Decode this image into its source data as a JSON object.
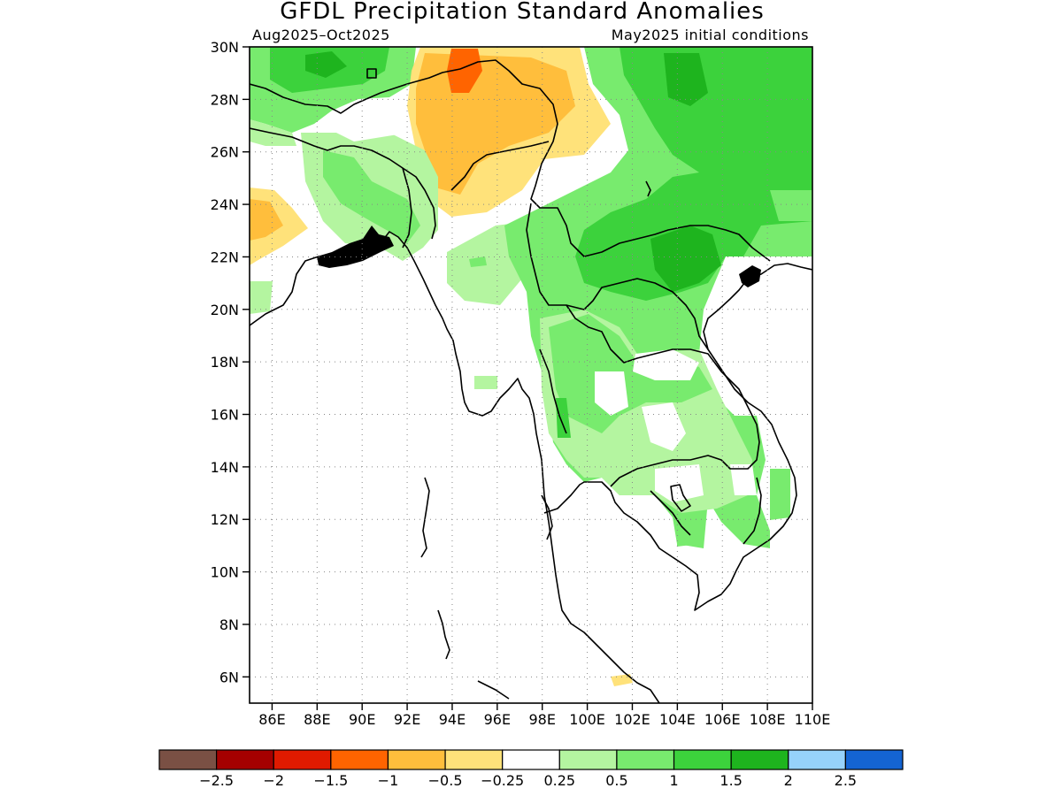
{
  "figure": {
    "title": "GFDL Precipitation Standard Anomalies",
    "period": "Aug2025–Oct2025",
    "init": "May2025 initial conditions"
  },
  "axes": {
    "lat_labels": [
      "30N",
      "28N",
      "26N",
      "24N",
      "22N",
      "20N",
      "18N",
      "16N",
      "14N",
      "12N",
      "10N",
      "8N",
      "6N"
    ],
    "lat_values": [
      30,
      28,
      26,
      24,
      22,
      20,
      18,
      16,
      14,
      12,
      10,
      8,
      6
    ],
    "lon_labels": [
      "86E",
      "88E",
      "90E",
      "92E",
      "94E",
      "96E",
      "98E",
      "100E",
      "102E",
      "104E",
      "106E",
      "108E",
      "110E"
    ],
    "lon_values": [
      86,
      88,
      90,
      92,
      94,
      96,
      98,
      100,
      102,
      104,
      106,
      108,
      110
    ],
    "lon_range": [
      85,
      110
    ],
    "lat_range": [
      5,
      30
    ]
  },
  "colorbar": {
    "colors": [
      "#7a5044",
      "#a50000",
      "#e01a00",
      "#ff6400",
      "#ffbe3c",
      "#ffe27a",
      "#ffffff",
      "#b4f5a0",
      "#78eb6e",
      "#3cd23c",
      "#1eb41e",
      "#96d2fa",
      "#1464d2"
    ],
    "labels": [
      "−2.5",
      "−2",
      "−1.5",
      "−1",
      "−0.5",
      "−0.25",
      "0.25",
      "0.5",
      "1",
      "1.5",
      "2",
      "2.5"
    ]
  },
  "colors": {
    "green_light": "#b4f5a0",
    "green": "#78eb6e",
    "green_mid": "#3cd23c",
    "green_dark": "#1eb41e",
    "yellow": "#ffe27a",
    "orange_light": "#ffbe3c",
    "orange": "#ff6400"
  }
}
